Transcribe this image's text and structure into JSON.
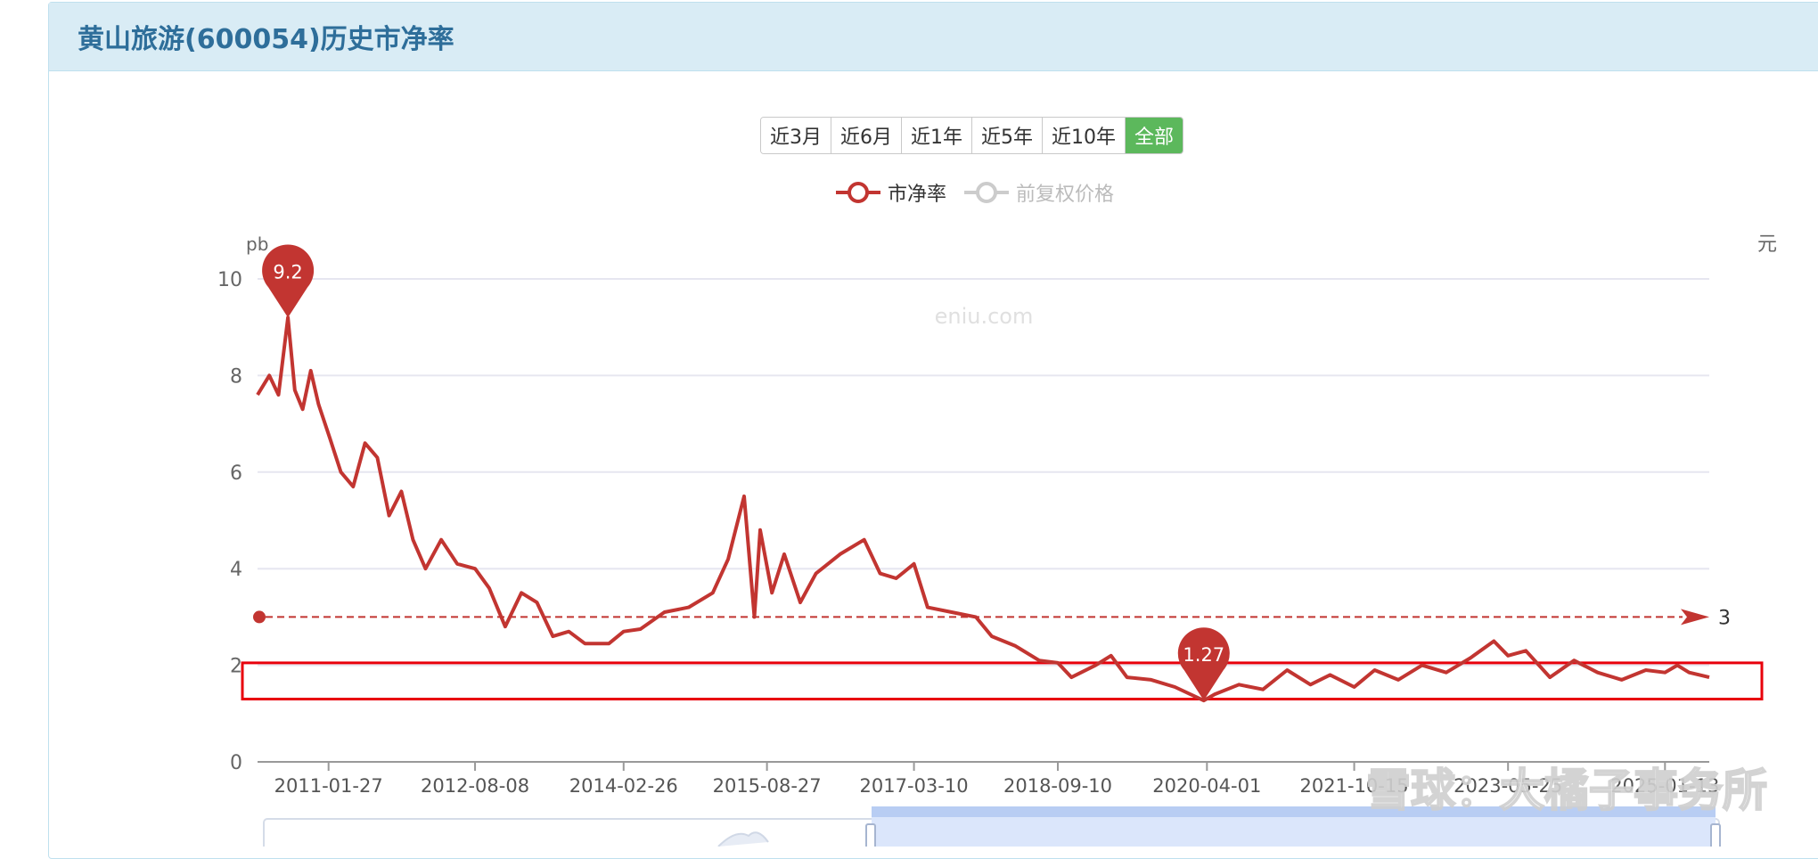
{
  "header": {
    "title": "黄山旅游(600054)历史市净率"
  },
  "range_buttons": [
    "近3月",
    "近6月",
    "近1年",
    "近5年",
    "近10年",
    "全部"
  ],
  "range_active": "全部",
  "legend": [
    {
      "label": "市净率",
      "color": "#c23531",
      "active": true
    },
    {
      "label": "前复权价格",
      "color": "#bbbbbb",
      "active": false
    }
  ],
  "watermark": "eniu.com",
  "corner_watermark": "雪球：大橘子事务所",
  "chart_data": {
    "type": "line",
    "y_unit_left": "pb",
    "y_unit_right": "元",
    "ylim": [
      0,
      10
    ],
    "y_ticks": [
      0,
      2,
      4,
      6,
      8,
      10
    ],
    "x_ticks": [
      "2011-01-27",
      "2012-08-08",
      "2014-02-26",
      "2015-08-27",
      "2017-03-10",
      "2018-09-10",
      "2020-04-01",
      "2021-10-15",
      "2023-05-25",
      "2025-01-13"
    ],
    "xlim": [
      "2010-05-01",
      "2025-07-01"
    ],
    "series": [
      {
        "name": "市净率",
        "color": "#c23531",
        "points": [
          [
            "2010-05-01",
            7.6
          ],
          [
            "2010-06-15",
            8.0
          ],
          [
            "2010-07-20",
            7.6
          ],
          [
            "2010-08-25",
            9.2
          ],
          [
            "2010-09-20",
            7.7
          ],
          [
            "2010-10-20",
            7.3
          ],
          [
            "2010-11-20",
            8.1
          ],
          [
            "2010-12-20",
            7.4
          ],
          [
            "2011-02-01",
            6.7
          ],
          [
            "2011-03-15",
            6.0
          ],
          [
            "2011-05-01",
            5.7
          ],
          [
            "2011-06-15",
            6.6
          ],
          [
            "2011-08-01",
            6.3
          ],
          [
            "2011-09-15",
            5.1
          ],
          [
            "2011-11-01",
            5.6
          ],
          [
            "2011-12-15",
            4.6
          ],
          [
            "2012-02-01",
            4.0
          ],
          [
            "2012-04-01",
            4.6
          ],
          [
            "2012-06-01",
            4.1
          ],
          [
            "2012-08-08",
            4.0
          ],
          [
            "2012-10-01",
            3.6
          ],
          [
            "2012-12-01",
            2.8
          ],
          [
            "2013-02-01",
            3.5
          ],
          [
            "2013-04-01",
            3.3
          ],
          [
            "2013-06-01",
            2.6
          ],
          [
            "2013-08-01",
            2.7
          ],
          [
            "2013-10-01",
            2.45
          ],
          [
            "2014-01-01",
            2.45
          ],
          [
            "2014-02-26",
            2.7
          ],
          [
            "2014-05-01",
            2.75
          ],
          [
            "2014-08-01",
            3.1
          ],
          [
            "2014-11-01",
            3.2
          ],
          [
            "2015-02-01",
            3.5
          ],
          [
            "2015-04-01",
            4.2
          ],
          [
            "2015-06-01",
            5.5
          ],
          [
            "2015-07-10",
            3.0
          ],
          [
            "2015-08-01",
            4.8
          ],
          [
            "2015-09-15",
            3.5
          ],
          [
            "2015-11-01",
            4.3
          ],
          [
            "2016-01-01",
            3.3
          ],
          [
            "2016-03-01",
            3.9
          ],
          [
            "2016-06-01",
            4.3
          ],
          [
            "2016-09-01",
            4.6
          ],
          [
            "2016-11-01",
            3.9
          ],
          [
            "2017-01-01",
            3.8
          ],
          [
            "2017-03-10",
            4.1
          ],
          [
            "2017-05-01",
            3.2
          ],
          [
            "2017-08-01",
            3.1
          ],
          [
            "2017-11-01",
            3.0
          ],
          [
            "2018-01-01",
            2.6
          ],
          [
            "2018-04-01",
            2.4
          ],
          [
            "2018-07-01",
            2.1
          ],
          [
            "2018-09-10",
            2.05
          ],
          [
            "2018-11-01",
            1.75
          ],
          [
            "2019-02-01",
            2.0
          ],
          [
            "2019-04-01",
            2.2
          ],
          [
            "2019-06-01",
            1.75
          ],
          [
            "2019-09-01",
            1.7
          ],
          [
            "2019-12-01",
            1.55
          ],
          [
            "2020-03-20",
            1.27
          ],
          [
            "2020-05-01",
            1.4
          ],
          [
            "2020-08-01",
            1.6
          ],
          [
            "2020-11-01",
            1.5
          ],
          [
            "2021-02-01",
            1.9
          ],
          [
            "2021-05-01",
            1.6
          ],
          [
            "2021-07-15",
            1.8
          ],
          [
            "2021-10-15",
            1.55
          ],
          [
            "2022-01-01",
            1.9
          ],
          [
            "2022-04-01",
            1.7
          ],
          [
            "2022-07-01",
            2.0
          ],
          [
            "2022-10-01",
            1.85
          ],
          [
            "2023-01-01",
            2.15
          ],
          [
            "2023-04-01",
            2.5
          ],
          [
            "2023-05-25",
            2.2
          ],
          [
            "2023-08-01",
            2.3
          ],
          [
            "2023-11-01",
            1.75
          ],
          [
            "2024-02-01",
            2.1
          ],
          [
            "2024-05-01",
            1.85
          ],
          [
            "2024-08-01",
            1.7
          ],
          [
            "2024-11-01",
            1.9
          ],
          [
            "2025-01-13",
            1.85
          ],
          [
            "2025-03-01",
            2.0
          ],
          [
            "2025-04-15",
            1.85
          ],
          [
            "2025-07-01",
            1.75
          ]
        ]
      }
    ],
    "mark_points": [
      {
        "label": "9.2",
        "date": "2010-08-25",
        "value": 9.2,
        "color": "#c23531"
      },
      {
        "label": "1.27",
        "date": "2020-03-20",
        "value": 1.27,
        "color": "#c23531"
      }
    ],
    "mark_line": {
      "value": 3,
      "label": "3",
      "color": "#c23531"
    },
    "highlight_band": {
      "y_range": [
        1.3,
        2.05
      ],
      "color": "#e8000b"
    }
  }
}
